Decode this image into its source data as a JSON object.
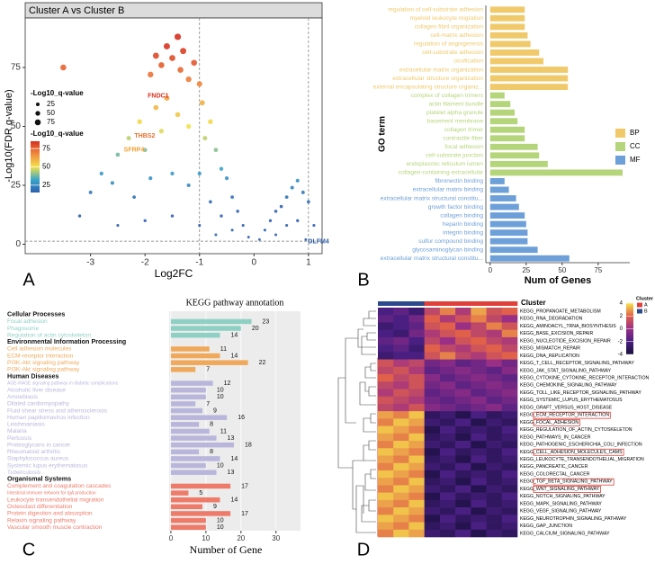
{
  "panel_labels": [
    "A",
    "B",
    "C",
    "D"
  ],
  "chart_data": [
    {
      "type": "scatter",
      "title": "Cluster A vs Cluster B",
      "xlabel": "Log2FC",
      "ylabel": "-Log10(FDR q-value)",
      "x": [
        -3.5,
        -1.9,
        -1.8,
        -1.7,
        -1.6,
        -1.5,
        -1.4,
        -1.35,
        -1.3,
        -1.2,
        -1.1,
        -1.0,
        -0.95,
        -1.6,
        -1.8,
        -2.1,
        -2.3,
        -2.5,
        -2.0,
        -1.7,
        -1.4,
        -1.2,
        -0.9,
        -0.8,
        -0.7,
        -0.6,
        -0.5,
        -0.4,
        -0.3,
        -0.2,
        -0.1,
        -2.8,
        -3.0,
        -2.6,
        -2.2,
        -1.9,
        -1.5,
        -1.2,
        -1.0,
        -0.8,
        -0.6,
        -0.4,
        -1.5,
        -2.0,
        -1.0,
        -0.7,
        -3.2,
        -2.5,
        0.1,
        0.2,
        0.3,
        0.4,
        0.5,
        0.6,
        0.7,
        0.8,
        0.9,
        1.0,
        0.6,
        0.4,
        0.8,
        1.1,
        0.95
      ],
      "y": [
        75,
        72,
        80,
        76,
        84,
        79,
        88,
        74,
        82,
        70,
        77,
        68,
        60,
        62,
        58,
        52,
        45,
        38,
        40,
        48,
        55,
        50,
        45,
        52,
        40,
        32,
        28,
        20,
        14,
        8,
        3,
        30,
        22,
        26,
        20,
        28,
        30,
        25,
        30,
        18,
        12,
        6,
        12,
        10,
        8,
        4,
        12,
        8,
        2,
        6,
        10,
        14,
        16,
        20,
        24,
        27,
        22,
        18,
        8,
        4,
        10,
        8,
        2
      ],
      "xlim": [
        -4.2,
        1.25
      ],
      "ylim": [
        -4,
        96
      ],
      "xticks": [
        -3,
        -2,
        -1,
        0,
        1
      ],
      "yticks": [
        0,
        25,
        50,
        75
      ],
      "vlines": [
        -1,
        1
      ],
      "hline": 1.3,
      "annotations": [
        {
          "text": "FNDC1",
          "x": -1.5,
          "y": 63,
          "color": "#d7301f"
        },
        {
          "text": "THBS2",
          "x": -1.75,
          "y": 46,
          "color": "#e8702a"
        },
        {
          "text": "SFRP4",
          "x": -1.95,
          "y": 40,
          "color": "#f0a030"
        },
        {
          "text": "OLFM4",
          "x": 0.92,
          "y": 1,
          "color": "#2c5aa0"
        }
      ],
      "size_legend": {
        "title": "-Log10_q-value",
        "values": [
          25,
          50,
          75
        ]
      },
      "colorbar": {
        "title": "-Log10_q-value",
        "ticks": [
          75,
          50,
          25
        ],
        "clim": [
          15,
          85
        ],
        "colors": [
          "#2c5fb0",
          "#3aa6c8",
          "#f2e14a",
          "#f08a3e",
          "#d7301f"
        ]
      }
    },
    {
      "type": "bar",
      "orientation": "horizontal",
      "xlabel": "Num of Genes",
      "ylabel": "GO term",
      "legend": "right",
      "xlim": [
        -3,
        97
      ],
      "xticks": [
        0,
        25,
        50,
        75
      ],
      "series": [
        {
          "name": "BP",
          "color": "#f0c96a",
          "categories": [
            "regulation of cell-substrate adhesion",
            "myeloid leukocyte migration",
            "collagen fibril organization",
            "cell-matrix adhesion",
            "regulation of angiogenesis",
            "cell-substrate adhesion",
            "ossification",
            "extracellular matrix organization",
            "extracellular structure organization",
            "external encapsulating structure organiz..."
          ],
          "values": [
            24,
            24,
            24,
            26,
            28,
            34,
            37,
            54,
            54,
            54
          ]
        },
        {
          "name": "CC",
          "color": "#b5d57a",
          "categories": [
            "complex of collagen trimers",
            "actin filament bundle",
            "platelet alpha granule",
            "basement membrane",
            "collagen trimer",
            "contractile fiber",
            "focal adhesion",
            "cell-substrate junction",
            "endoplasmic reticulum lumen",
            "collagen-containing extracellular"
          ],
          "values": [
            10,
            14,
            17,
            19,
            24,
            24,
            33,
            34,
            40,
            92
          ]
        },
        {
          "name": "MF",
          "color": "#6d9fd8",
          "categories": [
            "fibronectin binding",
            "extracellular matrix binding",
            "extracellular matrix structural constitu...",
            "growth factor binding",
            "collagen binding",
            "heparin binding",
            "integrin binding",
            "sulfur compound binding",
            "glycosaminoglycan binding",
            "extracellular matrix structural constitu..."
          ],
          "values": [
            10,
            13,
            18,
            20,
            24,
            25,
            26,
            26,
            33,
            55
          ]
        }
      ]
    },
    {
      "type": "bar",
      "orientation": "horizontal",
      "title": "KEGG pathway annotation",
      "xlabel": "Number of Gene",
      "xlim": [
        -0.5,
        37
      ],
      "xticks": [
        0,
        10,
        20,
        30
      ],
      "series": [
        {
          "name": "Cellular Processes",
          "color": "#8fd0c4",
          "categories": [
            "Focal adhesion",
            "Phagosome",
            "Regulation of actin cytoskeleton"
          ],
          "values": [
            23,
            20,
            14
          ]
        },
        {
          "name": "Environmental Information Processing",
          "color": "#f0a95a",
          "categories": [
            "Cell adhesion molecules",
            "ECM-receptor interaction",
            "PI3K-Akt signaling pathway",
            "PI3K-Akt signaling pathway"
          ],
          "values": [
            11,
            14,
            22,
            7
          ]
        },
        {
          "name": "Human Diseases",
          "color": "#b9b6dc",
          "categories": [
            "AGE-RAGE signaling pathway in diabetic complications",
            "Alcoholic liver disease",
            "Amoebiasis",
            "Dilated cardiomyopathy",
            "Fluid shear stress and atherosclerosis",
            "Human papillomavirus infection",
            "Leishmaniasis",
            "Malaria",
            "Pertussis",
            "Proteoglycans in cancer",
            "Rheumatoid arthritis",
            "Staphylococcus aureus",
            "Systemic lupus erythematosus",
            "Tuberculosis"
          ],
          "values": [
            12,
            10,
            10,
            7,
            9,
            16,
            8,
            11,
            13,
            18,
            8,
            14,
            10,
            13
          ]
        },
        {
          "name": "Organismal Systems",
          "color": "#ee7b6a",
          "categories": [
            "Complement and coagulation cascades",
            "Intestinal immune network for IgA production",
            "Leukocyte transendothelial migration",
            "Osteoclast differentiation",
            "Protein digestion and absorption",
            "Relaxin signaling pathway",
            "Vascular smooth muscle contraction"
          ],
          "values": [
            17,
            5,
            14,
            9,
            17,
            10,
            10
          ]
        }
      ]
    },
    {
      "type": "heatmap",
      "annotation_title": "Cluster",
      "legend_title": "Cluster",
      "clusters": [
        {
          "name": "A",
          "color": "#e0403a"
        },
        {
          "name": "B",
          "color": "#2d4a8c"
        }
      ],
      "columns": [
        "B",
        "B",
        "B",
        "A",
        "A",
        "A",
        "A",
        "A",
        "A"
      ],
      "clim": [
        -4,
        4
      ],
      "colorbar_ticks": [
        4,
        2,
        0,
        -2,
        -4
      ],
      "colors": [
        "#170f3c",
        "#4a1f82",
        "#9a2f86",
        "#e0604a",
        "#f7e44a"
      ],
      "highlighted": [
        14,
        15,
        19,
        23,
        24
      ],
      "rows": [
        "KEGG_PROPANOATE_METABOLISM",
        "KEGG_RNA_DEGRADATION",
        "KEGG_AMINOACYL_TRNA_BIOSYNTHESIS",
        "KEGG_BASE_EXCISION_REPAIR",
        "KEGG_NUCLEOTIDE_EXCISION_REPAIR",
        "KEGG_MISMATCH_REPAIR",
        "KEGG_DNA_REPLICATION",
        "KEGG_T_CELL_RECEPTOR_SIGNALING_PATHWAY",
        "KEGG_JAK_STAT_SIGNALING_PATHWAY",
        "KEGG_CYTOKINE_CYTOKINE_RECEPTOR_INTERACTION",
        "KEGG_CHEMOKINE_SIGNALING_PATHWAY",
        "KEGG_TOLL_LIKE_RECEPTOR_SIGNALING_PATHWAY",
        "KEGG_SYSTEMIC_LUPUS_ERYTHEMATOSUS",
        "KEGG_GRAFT_VERSUS_HOST_DISEASE",
        "KEGG_ECM_RECEPTOR_INTERACTION",
        "KEGG_FOCAL_ADHESION",
        "KEGG_REGULATION_OF_ACTIN_CYTOSKELETON",
        "KEGG_PATHWAYS_IN_CANCER",
        "KEGG_PATHOGENIC_ESCHERICHIA_COLI_INFECTION",
        "KEGG_CELL_ADHESION_MOLECULES_CAMS",
        "KEGG_LEUKOCYTE_TRANSENDOTHELIAL_MIGRATION",
        "KEGG_PANCREATIC_CANCER",
        "KEGG_COLORECTAL_CANCER",
        "KEGG_TGF_BETA_SIGNALING_PATHWAY",
        "KEGG_WNT_SIGNALING_PATHWAY",
        "KEGG_NOTCH_SIGNALING_PATHWAY",
        "KEGG_MAPK_SIGNALING_PATHWAY",
        "KEGG_VEGF_SIGNALING_PATHWAY",
        "KEGG_NEUROTROPHIN_SIGNALING_PATHWAY",
        "KEGG_GAP_JUNCTION",
        "KEGG_CALCIUM_SIGNALING_PATHWAY"
      ],
      "values": [
        [
          -2,
          -1.5,
          -2.5,
          1,
          2.5,
          0.5,
          3,
          1.5,
          2
        ],
        [
          -1.5,
          -2,
          -1,
          2,
          0.5,
          1.5,
          2.5,
          1,
          0
        ],
        [
          -2.5,
          -2,
          -1.5,
          1.5,
          2,
          0,
          1,
          2.5,
          1.5
        ],
        [
          -2,
          -2.5,
          -1,
          0.5,
          1.5,
          2,
          1,
          0.5,
          2.5
        ],
        [
          -1.5,
          -1,
          -2,
          1,
          0,
          1.5,
          2,
          1,
          0.5
        ],
        [
          -2,
          -1.5,
          -2.5,
          2,
          1,
          0.5,
          1.5,
          2,
          1
        ],
        [
          -2.5,
          -2,
          -2,
          1.5,
          2.5,
          1,
          0.5,
          1.5,
          2
        ],
        [
          1.5,
          0.5,
          1,
          -1,
          -0.5,
          -1.5,
          -1,
          0,
          -1
        ],
        [
          1,
          1.5,
          0.5,
          -1.5,
          -1,
          -0.5,
          -1,
          -1.5,
          -0.5
        ],
        [
          2,
          1,
          1.5,
          -0.5,
          -1.5,
          -1,
          -0.5,
          -1,
          -1.5
        ],
        [
          1,
          0.5,
          1.5,
          -1,
          -0.5,
          -1.5,
          -1,
          -0.5,
          -1
        ],
        [
          0.5,
          1.5,
          1,
          -1.5,
          -1,
          -0.5,
          -1.5,
          -1,
          -0.5
        ],
        [
          1.5,
          1,
          0.5,
          -1,
          -1.5,
          -1,
          -0.5,
          -1.5,
          -1
        ],
        [
          1,
          0.5,
          1.5,
          -0.5,
          -1,
          -1.5,
          -1,
          -0.5,
          -1.5
        ],
        [
          3,
          2.5,
          3.5,
          -3,
          -2.5,
          -3.5,
          -2,
          -3,
          -2.5
        ],
        [
          2.5,
          3.5,
          3,
          -2.5,
          -3,
          -2,
          -3.5,
          -2.5,
          -3
        ],
        [
          3.5,
          3,
          2.5,
          -3.5,
          -2,
          -3,
          -2.5,
          -3,
          -2
        ],
        [
          3,
          2.5,
          3.5,
          -3,
          -2.5,
          -3.5,
          -2,
          -3,
          -2.5
        ],
        [
          2.5,
          3.5,
          3,
          -2.5,
          -3,
          -2,
          -3.5,
          -2.5,
          -3
        ],
        [
          3.5,
          3,
          2.5,
          -3.5,
          -2,
          -3,
          -2.5,
          -3,
          -2
        ],
        [
          3,
          2.5,
          3.5,
          -3,
          -2.5,
          -3.5,
          -2,
          -3,
          -2.5
        ],
        [
          2.5,
          3.5,
          3,
          -2.5,
          -3,
          -2,
          -3.5,
          -2.5,
          -3
        ],
        [
          3.5,
          3,
          2.5,
          -3.5,
          -2,
          -3,
          -2.5,
          -3,
          -2
        ],
        [
          3,
          2.5,
          3.5,
          -3,
          -2.5,
          -3.5,
          -2,
          -3,
          -2.5
        ],
        [
          2.5,
          3.5,
          3,
          -2.5,
          -3,
          -2,
          -3.5,
          -2.5,
          -3
        ],
        [
          3.5,
          3,
          2.5,
          -3.5,
          -2,
          -3,
          -2.5,
          -3,
          -2
        ],
        [
          3,
          2.5,
          3.5,
          -3,
          -2.5,
          -3.5,
          -2,
          -3,
          -2.5
        ],
        [
          2.5,
          3.5,
          3,
          -2.5,
          -3,
          -2,
          -3.5,
          -2.5,
          -3
        ],
        [
          3.5,
          3,
          2.5,
          -3.5,
          -2,
          -3,
          -2.5,
          -3,
          -2
        ],
        [
          3,
          2.5,
          3.5,
          -3,
          -2.5,
          -3.5,
          -2,
          -3,
          -2.5
        ],
        [
          2.5,
          3.5,
          3,
          -2.5,
          -3,
          -2,
          -3.5,
          -2.5,
          -3
        ]
      ]
    }
  ]
}
